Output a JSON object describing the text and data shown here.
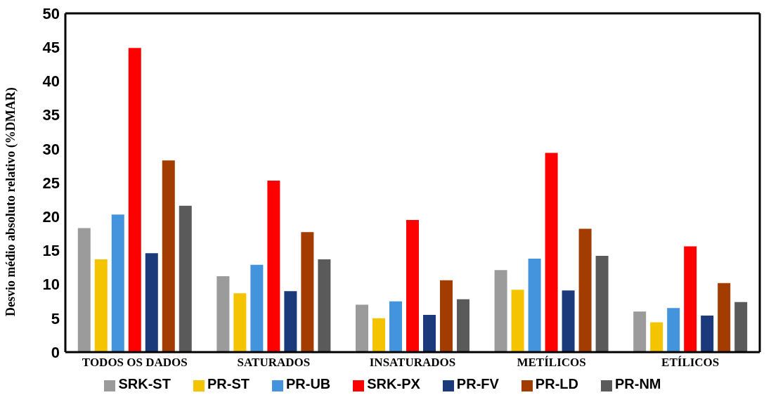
{
  "chart_data": {
    "type": "bar",
    "ylabel": "Desvio médio absoluto relativo (%DMAR)",
    "categories": [
      "TODOS OS DADOS",
      "SATURADOS",
      "INSATURADOS",
      "METÍLICOS",
      "ETÍLICOS"
    ],
    "series": [
      {
        "name": "SRK-ST",
        "color": "#9b9b9b",
        "values": [
          18.3,
          11.2,
          7.0,
          12.1,
          6.0
        ]
      },
      {
        "name": "PR-ST",
        "color": "#f5c400",
        "values": [
          13.7,
          8.7,
          5.0,
          9.2,
          4.4
        ]
      },
      {
        "name": "PR-UB",
        "color": "#4493dd",
        "values": [
          20.3,
          12.9,
          7.5,
          13.8,
          6.5
        ]
      },
      {
        "name": "SRK-PX",
        "color": "#ff0000",
        "values": [
          44.9,
          25.3,
          19.5,
          29.4,
          15.6
        ]
      },
      {
        "name": "PR-FV",
        "color": "#1a3a7c",
        "values": [
          14.6,
          9.0,
          5.5,
          9.1,
          5.4
        ]
      },
      {
        "name": "PR-LD",
        "color": "#a33c00",
        "values": [
          28.3,
          17.7,
          10.6,
          18.2,
          10.2
        ]
      },
      {
        "name": "PR-NM",
        "color": "#5a5a5a",
        "values": [
          21.6,
          13.7,
          7.8,
          14.2,
          7.4
        ]
      }
    ],
    "ylim": [
      0,
      50
    ],
    "yticks": [
      0,
      5,
      10,
      15,
      20,
      25,
      30,
      35,
      40,
      45,
      50
    ],
    "legend": "bottom"
  }
}
